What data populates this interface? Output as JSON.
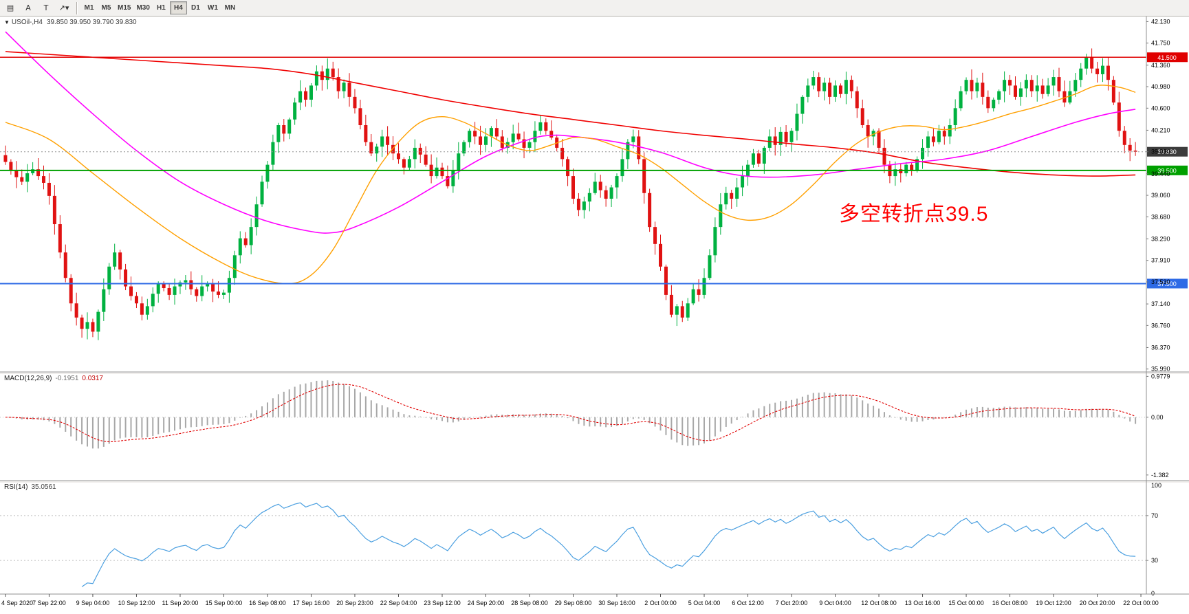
{
  "toolbar": {
    "icons": [
      {
        "name": "chart-window-icon",
        "glyph": "▤"
      },
      {
        "name": "cursor-tool-icon",
        "glyph": "A"
      },
      {
        "name": "text-tool-icon",
        "glyph": "T"
      },
      {
        "name": "draw-tools-icon",
        "glyph": "↗▾"
      }
    ],
    "timeframes": [
      "M1",
      "M5",
      "M15",
      "M30",
      "H1",
      "H4",
      "D1",
      "W1",
      "MN"
    ],
    "active_timeframe": "H4"
  },
  "chart": {
    "collapse_glyph": "▼",
    "title": "USOil-,H4",
    "ohlc": "39.850 39.950 39.790 39.830",
    "annotation": "多空转折点39.5",
    "price_axis_labels": [
      "42.130",
      "41.750",
      "41.360",
      "40.980",
      "40.600",
      "40.210",
      "39.830",
      "39.440",
      "39.060",
      "38.680",
      "38.290",
      "37.910",
      "37.530",
      "37.140",
      "36.760",
      "36.370",
      "35.990"
    ],
    "hlines": [
      {
        "label": "41.500",
        "price": 41.5,
        "color": "#e00000",
        "width": 1.4
      },
      {
        "label": "39.500",
        "price": 39.5,
        "color": "#00a000",
        "width": 2
      },
      {
        "label": "37.500",
        "price": 37.5,
        "color": "#2e6be6",
        "width": 2
      }
    ],
    "current_price": {
      "label": "39.830",
      "price": 39.83,
      "badge_color": "#3c3c3c"
    }
  },
  "macd": {
    "label": "MACD(12,26,9)",
    "value_main": "-0.1951",
    "value_signal": "0.0317",
    "axis_labels": [
      "0.9779",
      "0.00",
      "-1.382"
    ]
  },
  "rsi": {
    "label": "RSI(14)",
    "value": "35.0561",
    "axis_labels": [
      "100",
      "70",
      "30",
      "0"
    ],
    "levels": [
      70,
      30
    ]
  },
  "time_axis_labels": [
    "4 Sep 2020",
    "7 Sep 22:00",
    "9 Sep 04:00",
    "10 Sep 12:00",
    "11 Sep 20:00",
    "15 Sep 00:00",
    "16 Sep 08:00",
    "17 Sep 16:00",
    "20 Sep 23:00",
    "22 Sep 04:00",
    "23 Sep 12:00",
    "24 Sep 20:00",
    "28 Sep 08:00",
    "29 Sep 08:00",
    "30 Sep 16:00",
    "2 Oct 00:00",
    "5 Oct 04:00",
    "6 Oct 12:00",
    "7 Oct 20:00",
    "9 Oct 04:00",
    "12 Oct 08:00",
    "13 Oct 16:00",
    "15 Oct 00:00",
    "16 Oct 08:00",
    "19 Oct 12:00",
    "20 Oct 20:00",
    "22 Oct 00:00"
  ],
  "chart_data": {
    "type": "candlestick",
    "symbol": "USOil",
    "timeframe": "H4",
    "ylim": [
      35.95,
      42.22
    ],
    "macd_ylim": [
      -1.5,
      1.05
    ],
    "bars_per_label": 8,
    "closes": [
      39.65,
      39.5,
      39.38,
      39.3,
      39.45,
      39.52,
      39.4,
      39.28,
      39.05,
      38.55,
      38.05,
      37.6,
      37.15,
      36.9,
      36.7,
      36.82,
      36.65,
      37.0,
      37.4,
      37.8,
      38.05,
      37.75,
      37.45,
      37.28,
      37.15,
      36.95,
      37.1,
      37.32,
      37.5,
      37.42,
      37.3,
      37.45,
      37.52,
      37.56,
      37.4,
      37.28,
      37.45,
      37.5,
      37.36,
      37.3,
      37.34,
      37.6,
      38.0,
      38.3,
      38.18,
      38.5,
      38.9,
      39.3,
      39.6,
      40.0,
      40.3,
      40.15,
      40.4,
      40.7,
      40.9,
      40.75,
      41.0,
      41.25,
      41.1,
      41.3,
      41.15,
      40.9,
      41.05,
      40.8,
      40.6,
      40.3,
      40.0,
      39.8,
      39.92,
      40.1,
      39.95,
      39.8,
      39.7,
      39.55,
      39.7,
      39.9,
      39.78,
      39.6,
      39.4,
      39.55,
      39.4,
      39.22,
      39.5,
      39.8,
      40.0,
      40.2,
      40.1,
      39.95,
      40.1,
      40.25,
      40.1,
      39.9,
      40.0,
      40.15,
      40.05,
      39.9,
      40.0,
      40.2,
      40.35,
      40.2,
      40.08,
      39.9,
      39.7,
      39.4,
      39.0,
      38.8,
      38.95,
      39.1,
      39.3,
      39.15,
      39.0,
      39.2,
      39.4,
      39.7,
      40.0,
      40.1,
      39.7,
      39.1,
      38.5,
      38.2,
      37.8,
      37.3,
      36.95,
      37.1,
      36.9,
      37.15,
      37.4,
      37.3,
      37.6,
      38.0,
      38.5,
      38.9,
      39.1,
      39.0,
      39.2,
      39.4,
      39.6,
      39.8,
      39.62,
      39.9,
      40.1,
      39.95,
      40.18,
      40.0,
      40.2,
      40.5,
      40.8,
      41.0,
      41.15,
      40.9,
      41.05,
      40.8,
      41.0,
      40.85,
      41.1,
      40.9,
      40.6,
      40.3,
      40.1,
      40.2,
      39.9,
      39.6,
      39.4,
      39.52,
      39.45,
      39.6,
      39.5,
      39.7,
      39.9,
      40.1,
      40.0,
      40.2,
      40.1,
      40.3,
      40.6,
      40.9,
      41.1,
      40.9,
      41.05,
      40.8,
      40.6,
      40.75,
      40.9,
      41.1,
      41.0,
      40.8,
      40.95,
      41.1,
      40.9,
      41.0,
      40.85,
      41.0,
      41.15,
      40.9,
      40.7,
      40.9,
      41.1,
      41.3,
      41.5,
      41.3,
      41.2,
      41.35,
      41.1,
      40.7,
      40.2,
      39.95,
      39.85,
      39.83
    ],
    "moving_averages": [
      {
        "name": "ma-slow-red",
        "color": "#f00000",
        "width": 1.6,
        "points": [
          [
            0,
            41.6
          ],
          [
            8,
            41.55
          ],
          [
            16,
            41.5
          ],
          [
            24,
            41.45
          ],
          [
            32,
            41.4
          ],
          [
            40,
            41.35
          ],
          [
            48,
            41.3
          ],
          [
            56,
            41.2
          ],
          [
            64,
            41.05
          ],
          [
            72,
            40.9
          ],
          [
            80,
            40.75
          ],
          [
            88,
            40.62
          ],
          [
            96,
            40.5
          ],
          [
            104,
            40.4
          ],
          [
            112,
            40.3
          ],
          [
            120,
            40.2
          ],
          [
            128,
            40.12
          ],
          [
            136,
            40.05
          ],
          [
            144,
            39.97
          ],
          [
            152,
            39.9
          ],
          [
            160,
            39.8
          ],
          [
            168,
            39.65
          ],
          [
            176,
            39.55
          ],
          [
            184,
            39.47
          ],
          [
            192,
            39.42
          ],
          [
            200,
            39.4
          ],
          [
            207,
            39.42
          ]
        ]
      },
      {
        "name": "ma-mid-magenta",
        "color": "#ff00ff",
        "width": 1.6,
        "points": [
          [
            0,
            41.95
          ],
          [
            8,
            41.2
          ],
          [
            16,
            40.5
          ],
          [
            24,
            39.85
          ],
          [
            32,
            39.3
          ],
          [
            40,
            38.9
          ],
          [
            48,
            38.6
          ],
          [
            56,
            38.42
          ],
          [
            60,
            38.4
          ],
          [
            64,
            38.5
          ],
          [
            72,
            38.85
          ],
          [
            80,
            39.3
          ],
          [
            88,
            39.75
          ],
          [
            96,
            40.05
          ],
          [
            100,
            40.12
          ],
          [
            104,
            40.1
          ],
          [
            112,
            40.0
          ],
          [
            120,
            39.82
          ],
          [
            128,
            39.55
          ],
          [
            134,
            39.42
          ],
          [
            140,
            39.38
          ],
          [
            148,
            39.42
          ],
          [
            156,
            39.52
          ],
          [
            164,
            39.62
          ],
          [
            172,
            39.7
          ],
          [
            180,
            39.85
          ],
          [
            188,
            40.1
          ],
          [
            196,
            40.35
          ],
          [
            202,
            40.5
          ],
          [
            207,
            40.58
          ]
        ]
      },
      {
        "name": "ma-fast-orange",
        "color": "#ffa000",
        "width": 1.4,
        "points": [
          [
            0,
            40.35
          ],
          [
            8,
            40.05
          ],
          [
            16,
            39.45
          ],
          [
            24,
            38.85
          ],
          [
            32,
            38.3
          ],
          [
            40,
            37.85
          ],
          [
            46,
            37.6
          ],
          [
            52,
            37.5
          ],
          [
            56,
            37.65
          ],
          [
            60,
            38.1
          ],
          [
            64,
            38.8
          ],
          [
            68,
            39.5
          ],
          [
            72,
            40.0
          ],
          [
            76,
            40.35
          ],
          [
            80,
            40.45
          ],
          [
            84,
            40.35
          ],
          [
            88,
            40.15
          ],
          [
            92,
            39.95
          ],
          [
            96,
            39.85
          ],
          [
            100,
            39.95
          ],
          [
            104,
            40.08
          ],
          [
            108,
            40.05
          ],
          [
            112,
            39.92
          ],
          [
            116,
            39.78
          ],
          [
            120,
            39.55
          ],
          [
            124,
            39.25
          ],
          [
            128,
            38.95
          ],
          [
            132,
            38.72
          ],
          [
            136,
            38.62
          ],
          [
            140,
            38.68
          ],
          [
            144,
            38.9
          ],
          [
            148,
            39.25
          ],
          [
            152,
            39.65
          ],
          [
            156,
            39.98
          ],
          [
            160,
            40.18
          ],
          [
            164,
            40.28
          ],
          [
            168,
            40.28
          ],
          [
            172,
            40.22
          ],
          [
            176,
            40.28
          ],
          [
            180,
            40.38
          ],
          [
            184,
            40.5
          ],
          [
            188,
            40.6
          ],
          [
            192,
            40.72
          ],
          [
            196,
            40.85
          ],
          [
            200,
            41.0
          ],
          [
            204,
            40.97
          ],
          [
            207,
            40.88
          ]
        ]
      }
    ],
    "colors": {
      "up": "#00b140",
      "down": "#e01212",
      "macd_hist": "#a8a8a8",
      "macd_signal": "#e00000",
      "rsi_line": "#4a9fe0"
    }
  }
}
